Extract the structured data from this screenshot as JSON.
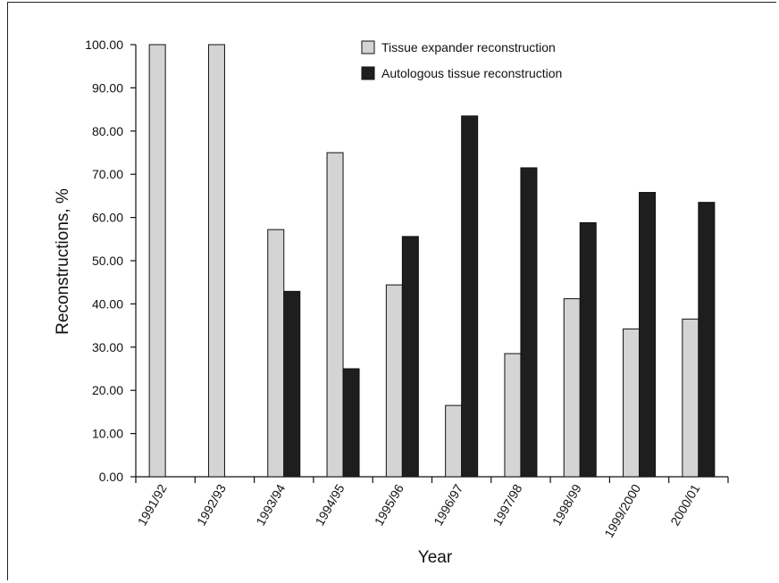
{
  "chart_data": {
    "type": "bar",
    "categories": [
      "1991/92",
      "1992/93",
      "1993/94",
      "1994/95",
      "1995/96",
      "1996/97",
      "1997/98",
      "1998/99",
      "1999/2000",
      "2000/01"
    ],
    "series": [
      {
        "name": "Tissue expander reconstruction",
        "color": "#d4d4d4",
        "values": [
          100.0,
          100.0,
          57.2,
          75.0,
          44.4,
          16.5,
          28.5,
          41.2,
          34.2,
          36.5
        ]
      },
      {
        "name": "Autologous tissue reconstruction",
        "color": "#1e1e1e",
        "values": [
          0.0,
          0.0,
          42.9,
          25.0,
          55.6,
          83.5,
          71.5,
          58.8,
          65.8,
          63.5
        ]
      }
    ],
    "xlabel": "Year",
    "ylabel": "Reconstructions, %",
    "ylim": [
      0,
      100
    ],
    "yticks": [
      "0.00",
      "10.00",
      "20.00",
      "30.00",
      "40.00",
      "50.00",
      "60.00",
      "70.00",
      "80.00",
      "90.00",
      "100.00"
    ],
    "grid": false,
    "legend_position": "top-right"
  }
}
